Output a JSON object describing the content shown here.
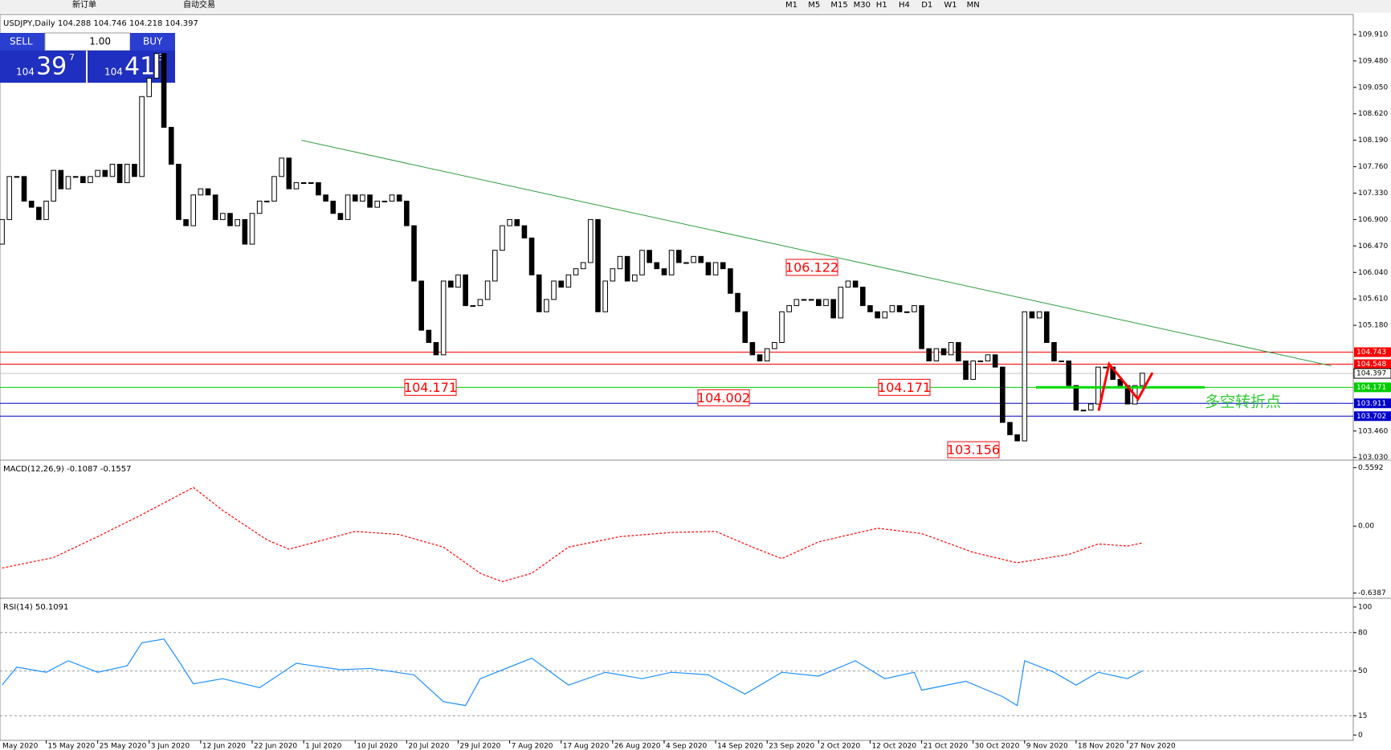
{
  "toolbar": {
    "buttons": [
      "新订单",
      "自动交易"
    ],
    "timeframes": [
      "M1",
      "M5",
      "M15",
      "M30",
      "H1",
      "H4",
      "D1",
      "W1",
      "MN"
    ]
  },
  "trade_panel": {
    "sell": "SELL",
    "buy": "BUY",
    "lot": "1.00",
    "sell_prefix": "104",
    "sell_big": "39",
    "sell_pip": "7",
    "buy_prefix": "104",
    "buy_big": "41",
    "buy_pip": "3"
  },
  "chart_data": [
    {
      "type": "candlestick",
      "title": "USDJPY,Daily  104.288 104.746 104.218 104.397",
      "categories": [
        "May 2020",
        null,
        null,
        null,
        null,
        null,
        null,
        "15 May 2020",
        null,
        null,
        null,
        null,
        null,
        null,
        "25 May 2020",
        null,
        null,
        null,
        null,
        null,
        null,
        "3 Jun 2020",
        null,
        null,
        null,
        null,
        null,
        null,
        "12 Jun 2020",
        null,
        null,
        null,
        null,
        null,
        null,
        "22 Jun 2020",
        null,
        null,
        null,
        null,
        null,
        null,
        "1 Jul 2020",
        null,
        null,
        null,
        null,
        null,
        null,
        "10 Jul 2020",
        null,
        null,
        null,
        null,
        null,
        null,
        "20 Jul 2020",
        null,
        null,
        null,
        null,
        null,
        null,
        "29 Jul 2020",
        null,
        null,
        null,
        null,
        null,
        null,
        "7 Aug 2020",
        null,
        null,
        null,
        null,
        null,
        null,
        "17 Aug 2020",
        null,
        null,
        null,
        null,
        null,
        null,
        "26 Aug 2020",
        null,
        null,
        null,
        null,
        null,
        null,
        "4 Sep 2020",
        null,
        null,
        null,
        null,
        null,
        null,
        "14 Sep 2020",
        null,
        null,
        null,
        null,
        null,
        null,
        "23 Sep 2020",
        null,
        null,
        null,
        null,
        null,
        null,
        "2 Oct 2020",
        null,
        null,
        null,
        null,
        null,
        null,
        "12 Oct 2020",
        null,
        null,
        null,
        null,
        null,
        null,
        "21 Oct 2020",
        null,
        null,
        null,
        null,
        null,
        null,
        "30 Oct 2020",
        null,
        null,
        null,
        null,
        null,
        null,
        "9 Nov 2020",
        null,
        null,
        null,
        null,
        null,
        null,
        "18 Nov 2020",
        null,
        null,
        null,
        null,
        null,
        null,
        "27 Nov 2020",
        null,
        null
      ],
      "values": [
        106.5,
        106.9,
        107.6,
        107.6,
        107.2,
        107.1,
        106.9,
        107.2,
        107.7,
        107.4,
        107.6,
        107.6,
        107.5,
        107.6,
        107.7,
        107.6,
        107.8,
        107.5,
        107.8,
        107.6,
        108.9,
        109.2,
        109.6,
        108.4,
        107.8,
        106.9,
        106.8,
        107.3,
        107.4,
        107.3,
        106.9,
        107.0,
        106.8,
        106.9,
        106.5,
        107.0,
        107.2,
        107.2,
        107.6,
        107.9,
        107.4,
        107.5,
        107.5,
        107.5,
        107.3,
        107.2,
        107.0,
        106.9,
        107.3,
        107.2,
        107.3,
        107.1,
        107.2,
        107.2,
        107.3,
        107.2,
        106.8,
        105.9,
        105.1,
        104.9,
        104.7,
        105.9,
        105.8,
        106.0,
        105.5,
        105.5,
        105.6,
        105.9,
        106.4,
        106.8,
        106.9,
        106.8,
        106.6,
        106.0,
        105.4,
        105.6,
        105.9,
        105.8,
        106.0,
        106.1,
        106.2,
        106.9,
        105.4,
        105.9,
        106.1,
        106.3,
        105.9,
        106.0,
        106.4,
        106.2,
        106.1,
        106.0,
        106.4,
        106.2,
        106.2,
        106.3,
        106.2,
        106.0,
        106.2,
        106.1,
        105.7,
        105.4,
        104.9,
        104.7,
        104.6,
        104.8,
        104.9,
        105.4,
        105.5,
        105.6,
        105.6,
        105.6,
        105.5,
        105.6,
        105.3,
        105.8,
        105.9,
        105.8,
        105.5,
        105.4,
        105.3,
        105.4,
        105.5,
        105.4,
        105.4,
        105.5,
        104.8,
        104.6,
        104.8,
        104.7,
        104.9,
        104.6,
        104.3,
        104.6,
        104.6,
        104.7,
        104.5,
        103.6,
        103.4,
        103.3,
        105.4,
        105.3,
        105.4,
        104.9,
        104.6,
        104.6,
        104.2,
        103.8,
        103.8,
        103.9,
        104.5,
        104.5,
        104.3,
        104.2,
        103.9,
        104.2,
        104.4
      ],
      "ylim": [
        103.0,
        110.21
      ],
      "yticks": [
        {
          "value": 109.91,
          "label": "109.910"
        },
        {
          "value": 109.48,
          "label": "109.480"
        },
        {
          "value": 109.05,
          "label": "109.050"
        },
        {
          "value": 108.62,
          "label": "108.620"
        },
        {
          "value": 108.19,
          "label": "108.190"
        },
        {
          "value": 107.76,
          "label": "107.760"
        },
        {
          "value": 107.33,
          "label": "107.330"
        },
        {
          "value": 106.9,
          "label": "106.900"
        },
        {
          "value": 106.47,
          "label": "106.470"
        },
        {
          "value": 106.04,
          "label": "106.040"
        },
        {
          "value": 105.61,
          "label": "105.610"
        },
        {
          "value": 105.18,
          "label": "105.180"
        },
        {
          "value": 103.46,
          "label": "103.460"
        },
        {
          "value": 103.03,
          "label": "103.030"
        }
      ],
      "levels": [
        {
          "value": 104.743,
          "color": "#ff0000"
        },
        {
          "value": 104.548,
          "color": "#ff0000"
        },
        {
          "value": 104.397,
          "color": "#c0c0c0"
        },
        {
          "value": 104.171,
          "color": "#00cc00"
        },
        {
          "value": 103.911,
          "color": "#0000cc"
        },
        {
          "value": 103.702,
          "color": "#0000cc"
        }
      ],
      "price_labels": [
        106.122,
        104.171,
        104.002,
        104.171,
        103.156
      ],
      "annotation": "多空转折点"
    },
    {
      "type": "line",
      "title": "MACD(12,26,9) -0.1087 -0.1557",
      "color": "#ff0000",
      "x": [
        1,
        8,
        14,
        20,
        27,
        31,
        37,
        40,
        49,
        55,
        61,
        66,
        69,
        73,
        78,
        85,
        92,
        98,
        103,
        107,
        112,
        120,
        126,
        133,
        139,
        146,
        150,
        154,
        156
      ],
      "values": [
        -0.4,
        -0.3,
        -0.1,
        0.11,
        0.37,
        0.15,
        -0.13,
        -0.22,
        -0.05,
        -0.08,
        -0.2,
        -0.45,
        -0.53,
        -0.45,
        -0.2,
        -0.1,
        -0.06,
        -0.05,
        -0.2,
        -0.31,
        -0.15,
        -0.02,
        -0.07,
        -0.25,
        -0.35,
        -0.27,
        -0.17,
        -0.19,
        -0.16
      ],
      "ylim": [
        -0.673,
        0.6
      ],
      "yticks": [
        0.5592,
        {
          "value": 0,
          "label": "0.00"
        },
        -0.6387
      ],
      "grid": false
    },
    {
      "type": "line",
      "title": "RSI(14) 50.1091",
      "color": "#1e90ff",
      "x": [
        1,
        3,
        7,
        10,
        14,
        18,
        20,
        23,
        25,
        27,
        31,
        36,
        41,
        47,
        51,
        57,
        61,
        64,
        66,
        73,
        78,
        83,
        88,
        92,
        97,
        102,
        107,
        112,
        117,
        121,
        125,
        126,
        132,
        137,
        139,
        140,
        144,
        147,
        150,
        154,
        156
      ],
      "values": [
        39,
        53,
        49,
        58,
        49,
        54,
        72,
        75,
        58,
        40,
        44,
        37,
        56,
        51,
        52,
        47,
        26,
        23,
        44,
        60,
        39,
        49,
        44,
        49,
        47,
        32,
        49,
        46,
        58,
        44,
        49,
        35,
        42,
        30,
        23,
        58,
        49,
        39,
        49,
        44,
        50.1
      ],
      "ylim": [
        -4.2,
        105.6
      ],
      "yticks": [
        100,
        80,
        50,
        15,
        0
      ],
      "grid": true
    }
  ]
}
